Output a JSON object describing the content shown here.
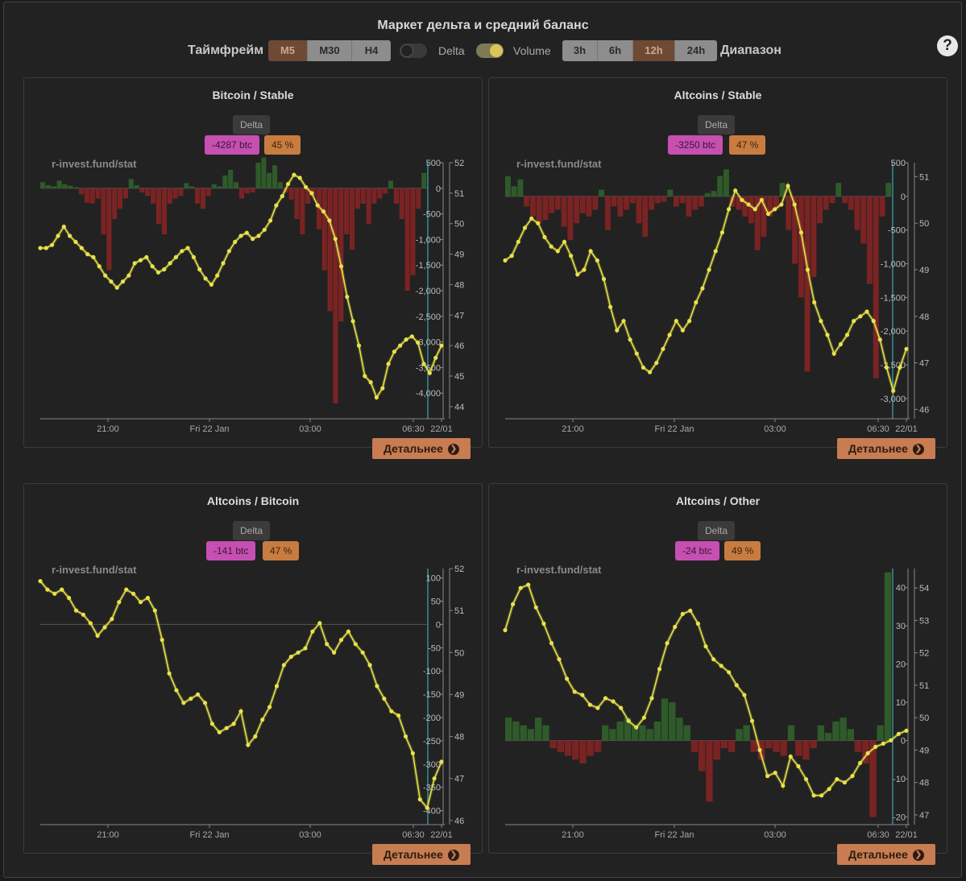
{
  "title": "Маркет дельта и средний баланс",
  "controls": {
    "timeframe_label": "Таймфрейм",
    "timeframes": [
      "M5",
      "M30",
      "H4"
    ],
    "timeframe_active": "M5",
    "toggle_delta_label": "Delta",
    "toggle_delta_on": false,
    "toggle_volume_label": "Volume",
    "toggle_volume_on": true,
    "ranges": [
      "3h",
      "6h",
      "12h",
      "24h"
    ],
    "range_active": "12h",
    "range_label": "Диапазон",
    "help_icon": "question-circle-icon"
  },
  "colors": {
    "positive_bar": "#2f5a2a",
    "negative_bar": "#7a2323",
    "balance_line": "#e8e24a",
    "accent_active": "#6e4a35",
    "now_line": "#3aa7b8"
  },
  "panels": [
    {
      "title": "Bitcoin / Stable",
      "delta_label": "Delta",
      "value": "-4287 btc",
      "percent": "45 %",
      "watermark": "r-invest.fund/stat",
      "button": "Детальнее",
      "x_ticks": [
        "21:00",
        "Fri 22 Jan",
        "03:00",
        "06:30",
        "22/01"
      ]
    },
    {
      "title": "Altcoins / Stable",
      "delta_label": "Delta",
      "value": "-3250 btc",
      "percent": "47 %",
      "watermark": "r-invest.fund/stat",
      "button": "Детальнее",
      "x_ticks": [
        "21:00",
        "Fri 22 Jan",
        "03:00",
        "06:30",
        "22/01"
      ]
    },
    {
      "title": "Altcoins / Bitcoin",
      "delta_label": "Delta",
      "value": "-141 btc",
      "percent": "47 %",
      "watermark": "r-invest.fund/stat",
      "button": "Детальнее",
      "x_ticks": [
        "21:00",
        "Fri 22 Jan",
        "03:00",
        "06:30",
        "22/01"
      ]
    },
    {
      "title": "Altcoins / Other",
      "delta_label": "Delta",
      "value": "-24 btc",
      "percent": "49 %",
      "watermark": "r-invest.fund/stat",
      "button": "Детальнее",
      "x_ticks": [
        "21:00",
        "Fri 22 Jan",
        "03:00",
        "06:30",
        "22/01"
      ]
    }
  ],
  "chart_data": [
    {
      "type": "bar+line",
      "title": "Bitcoin / Stable",
      "x_labels": [
        "21:00",
        "Fri 22 Jan",
        "03:00",
        "06:30",
        "22/01"
      ],
      "left_axis": {
        "ticks": [
          "500",
          "0",
          "-500",
          "-1,000",
          "-1,500",
          "-2,000",
          "-2,500",
          "-3,000",
          "-3,500",
          "-4,000"
        ],
        "ylim": [
          -4500,
          500
        ]
      },
      "right_axis": {
        "ticks": [
          "52",
          "51",
          "50",
          "49",
          "48",
          "47",
          "46",
          "45",
          "44"
        ],
        "ylim": [
          43.6,
          52
        ]
      },
      "balance": [
        49.2,
        49.2,
        49.3,
        49.6,
        49.9,
        49.6,
        49.4,
        49.2,
        49.0,
        48.9,
        48.6,
        48.3,
        48.1,
        47.9,
        48.1,
        48.3,
        48.7,
        48.8,
        48.9,
        48.6,
        48.4,
        48.5,
        48.7,
        48.9,
        49.1,
        49.2,
        48.9,
        48.5,
        48.2,
        48.0,
        48.3,
        48.7,
        49.1,
        49.4,
        49.6,
        49.7,
        49.5,
        49.6,
        49.8,
        50.1,
        50.6,
        50.9,
        51.3,
        51.6,
        51.5,
        51.2,
        51.0,
        50.6,
        50.4,
        50.1,
        49.5,
        48.6,
        47.6,
        46.8,
        46.0,
        45.0,
        44.8,
        44.3,
        44.6,
        45.4,
        45.8,
        46.0,
        46.2,
        46.3,
        46.1,
        45.4,
        45.1,
        45.6,
        46.0
      ],
      "delta": [
        120,
        60,
        40,
        150,
        80,
        50,
        20,
        -120,
        -280,
        -300,
        -200,
        -900,
        -1600,
        -600,
        -400,
        -200,
        180,
        60,
        -80,
        -150,
        -300,
        -700,
        -900,
        -300,
        -200,
        -150,
        100,
        40,
        -300,
        -400,
        -150,
        80,
        40,
        250,
        360,
        120,
        -200,
        -100,
        -80,
        500,
        600,
        300,
        450,
        120,
        -80,
        -220,
        -600,
        -900,
        -300,
        -150,
        -800,
        -1600,
        -2400,
        -4200,
        -2600,
        -900,
        -1200,
        -400,
        -300,
        -700,
        -300,
        -200,
        -100,
        150,
        -300,
        -600,
        -2000,
        -1700,
        -400,
        300
      ]
    },
    {
      "type": "bar+line",
      "title": "Altcoins / Stable",
      "x_labels": [
        "21:00",
        "Fri 22 Jan",
        "03:00",
        "06:30",
        "22/01"
      ],
      "left_axis": {
        "ticks": [
          "500",
          "0",
          "-500",
          "-1,000",
          "-1,500",
          "-2,000",
          "-2,500",
          "-3,000"
        ],
        "ylim": [
          -3300,
          500
        ]
      },
      "right_axis": {
        "ticks": [
          "51",
          "50",
          "49",
          "48",
          "47",
          "46"
        ],
        "ylim": [
          45.8,
          51.3
        ]
      },
      "balance": [
        49.2,
        49.3,
        49.6,
        49.9,
        50.1,
        50.0,
        49.7,
        49.5,
        49.4,
        49.6,
        49.3,
        48.9,
        49.0,
        49.4,
        49.2,
        48.8,
        48.2,
        47.7,
        47.9,
        47.5,
        47.2,
        46.9,
        46.8,
        47.0,
        47.3,
        47.6,
        47.9,
        47.7,
        47.9,
        48.3,
        48.6,
        49.0,
        49.4,
        49.8,
        50.3,
        50.7,
        50.5,
        50.4,
        50.3,
        50.5,
        50.2,
        50.3,
        50.4,
        50.8,
        50.4,
        49.8,
        49.0,
        48.3,
        47.9,
        47.6,
        47.2,
        47.4,
        47.6,
        47.9,
        48.0,
        48.1,
        47.9,
        47.5,
        46.9,
        46.4,
        46.9,
        47.3
      ],
      "delta": [
        300,
        150,
        250,
        -150,
        -300,
        -400,
        -350,
        -250,
        -200,
        -450,
        -650,
        -400,
        -250,
        -300,
        -200,
        100,
        -500,
        -150,
        -300,
        -200,
        -100,
        -400,
        -600,
        -200,
        -100,
        -80,
        100,
        -150,
        -100,
        -300,
        -200,
        -150,
        50,
        80,
        300,
        400,
        -150,
        -200,
        -300,
        -400,
        -800,
        -600,
        -300,
        -200,
        200,
        -500,
        -1000,
        -1500,
        -2600,
        -1200,
        -400,
        -200,
        -100,
        200,
        -100,
        -200,
        -500,
        -700,
        -1300,
        -2700,
        -300,
        200
      ]
    },
    {
      "type": "bar+line",
      "title": "Altcoins / Bitcoin",
      "x_labels": [
        "21:00",
        "Fri 22 Jan",
        "03:00",
        "06:30",
        "22/01"
      ],
      "left_axis": {
        "ticks": [
          "100",
          "50",
          "0",
          "-50",
          "-100",
          "-150",
          "-200",
          "-250",
          "-300",
          "-350",
          "-400"
        ],
        "ylim": [
          -430,
          120
        ]
      },
      "right_axis": {
        "ticks": [
          "52",
          "51",
          "50",
          "49",
          "48",
          "47",
          "46"
        ],
        "ylim": [
          45.9,
          52
        ]
      },
      "balance": [
        51.7,
        51.5,
        51.4,
        51.5,
        51.3,
        51.0,
        50.9,
        50.7,
        50.4,
        50.6,
        50.8,
        51.2,
        51.5,
        51.4,
        51.2,
        51.3,
        51.0,
        50.3,
        49.5,
        49.1,
        48.8,
        48.9,
        49.0,
        48.8,
        48.3,
        48.1,
        48.2,
        48.3,
        48.6,
        47.8,
        48.0,
        48.4,
        48.7,
        49.2,
        49.7,
        49.9,
        50.0,
        50.1,
        50.5,
        50.7,
        50.2,
        50.0,
        50.3,
        50.5,
        50.2,
        50.0,
        49.7,
        49.2,
        48.9,
        48.6,
        48.5,
        48.0,
        47.6,
        46.5,
        46.3,
        47.0,
        47.4
      ]
    },
    {
      "type": "bar+line",
      "title": "Altcoins / Other",
      "x_labels": [
        "21:00",
        "Fri 22 Jan",
        "03:00",
        "06:30",
        "22/01"
      ],
      "left_axis": {
        "ticks": [
          "40",
          "30",
          "20",
          "10",
          "0",
          "-10",
          "-20"
        ],
        "ylim": [
          -22,
          45
        ]
      },
      "right_axis": {
        "ticks": [
          "54",
          "53",
          "52",
          "51",
          "50",
          "49",
          "48",
          "47"
        ],
        "ylim": [
          46.7,
          54.6
        ]
      },
      "balance": [
        52.7,
        53.5,
        54.0,
        54.1,
        53.4,
        52.9,
        52.3,
        51.8,
        51.2,
        50.8,
        50.7,
        50.4,
        50.3,
        50.6,
        50.5,
        50.3,
        49.9,
        49.7,
        50.0,
        50.6,
        51.5,
        52.3,
        52.8,
        53.2,
        53.3,
        52.9,
        52.2,
        51.8,
        51.6,
        51.4,
        51.0,
        50.7,
        49.9,
        49.0,
        48.2,
        48.3,
        47.9,
        48.8,
        48.5,
        48.1,
        47.6,
        47.6,
        47.8,
        48.1,
        48.0,
        48.2,
        48.6,
        48.9,
        49.1,
        49.2,
        49.3,
        49.5,
        49.6
      ],
      "delta": [
        6,
        5,
        4,
        3,
        6,
        4,
        -2,
        -3,
        -4,
        -5,
        -6,
        -4,
        -3,
        4,
        3,
        5,
        6,
        4,
        4,
        3,
        5,
        11,
        10,
        6,
        4,
        -3,
        -8,
        -16,
        -5,
        -2,
        -3,
        3,
        4,
        -3,
        -5,
        -2,
        -3,
        -4,
        4,
        -4,
        -5,
        -2,
        4,
        2,
        5,
        6,
        3,
        -3,
        -6,
        -20,
        4,
        44
      ]
    }
  ]
}
